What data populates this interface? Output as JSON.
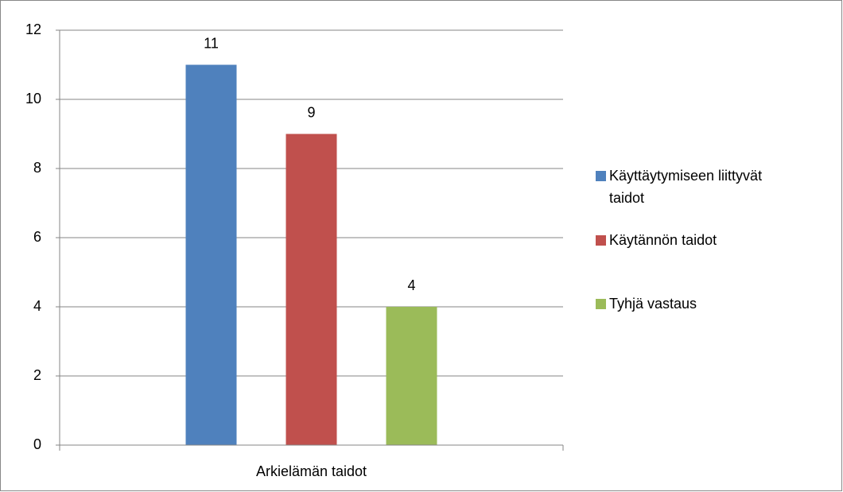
{
  "chart_data": {
    "type": "bar",
    "categories": [
      "Arkielämän taidot"
    ],
    "series": [
      {
        "name": "Käyttäytymiseen liittyvät taidot",
        "color": "#4f81bd",
        "values": [
          11
        ]
      },
      {
        "name": "Käytännön taidot",
        "color": "#c0504d",
        "values": [
          9
        ]
      },
      {
        "name": "Tyhjä vastaus",
        "color": "#9bbb59",
        "values": [
          4
        ]
      }
    ],
    "ylim": [
      0,
      12
    ],
    "yticks": [
      0,
      2,
      4,
      6,
      8,
      10,
      12
    ],
    "grid": true,
    "legend": "right"
  }
}
